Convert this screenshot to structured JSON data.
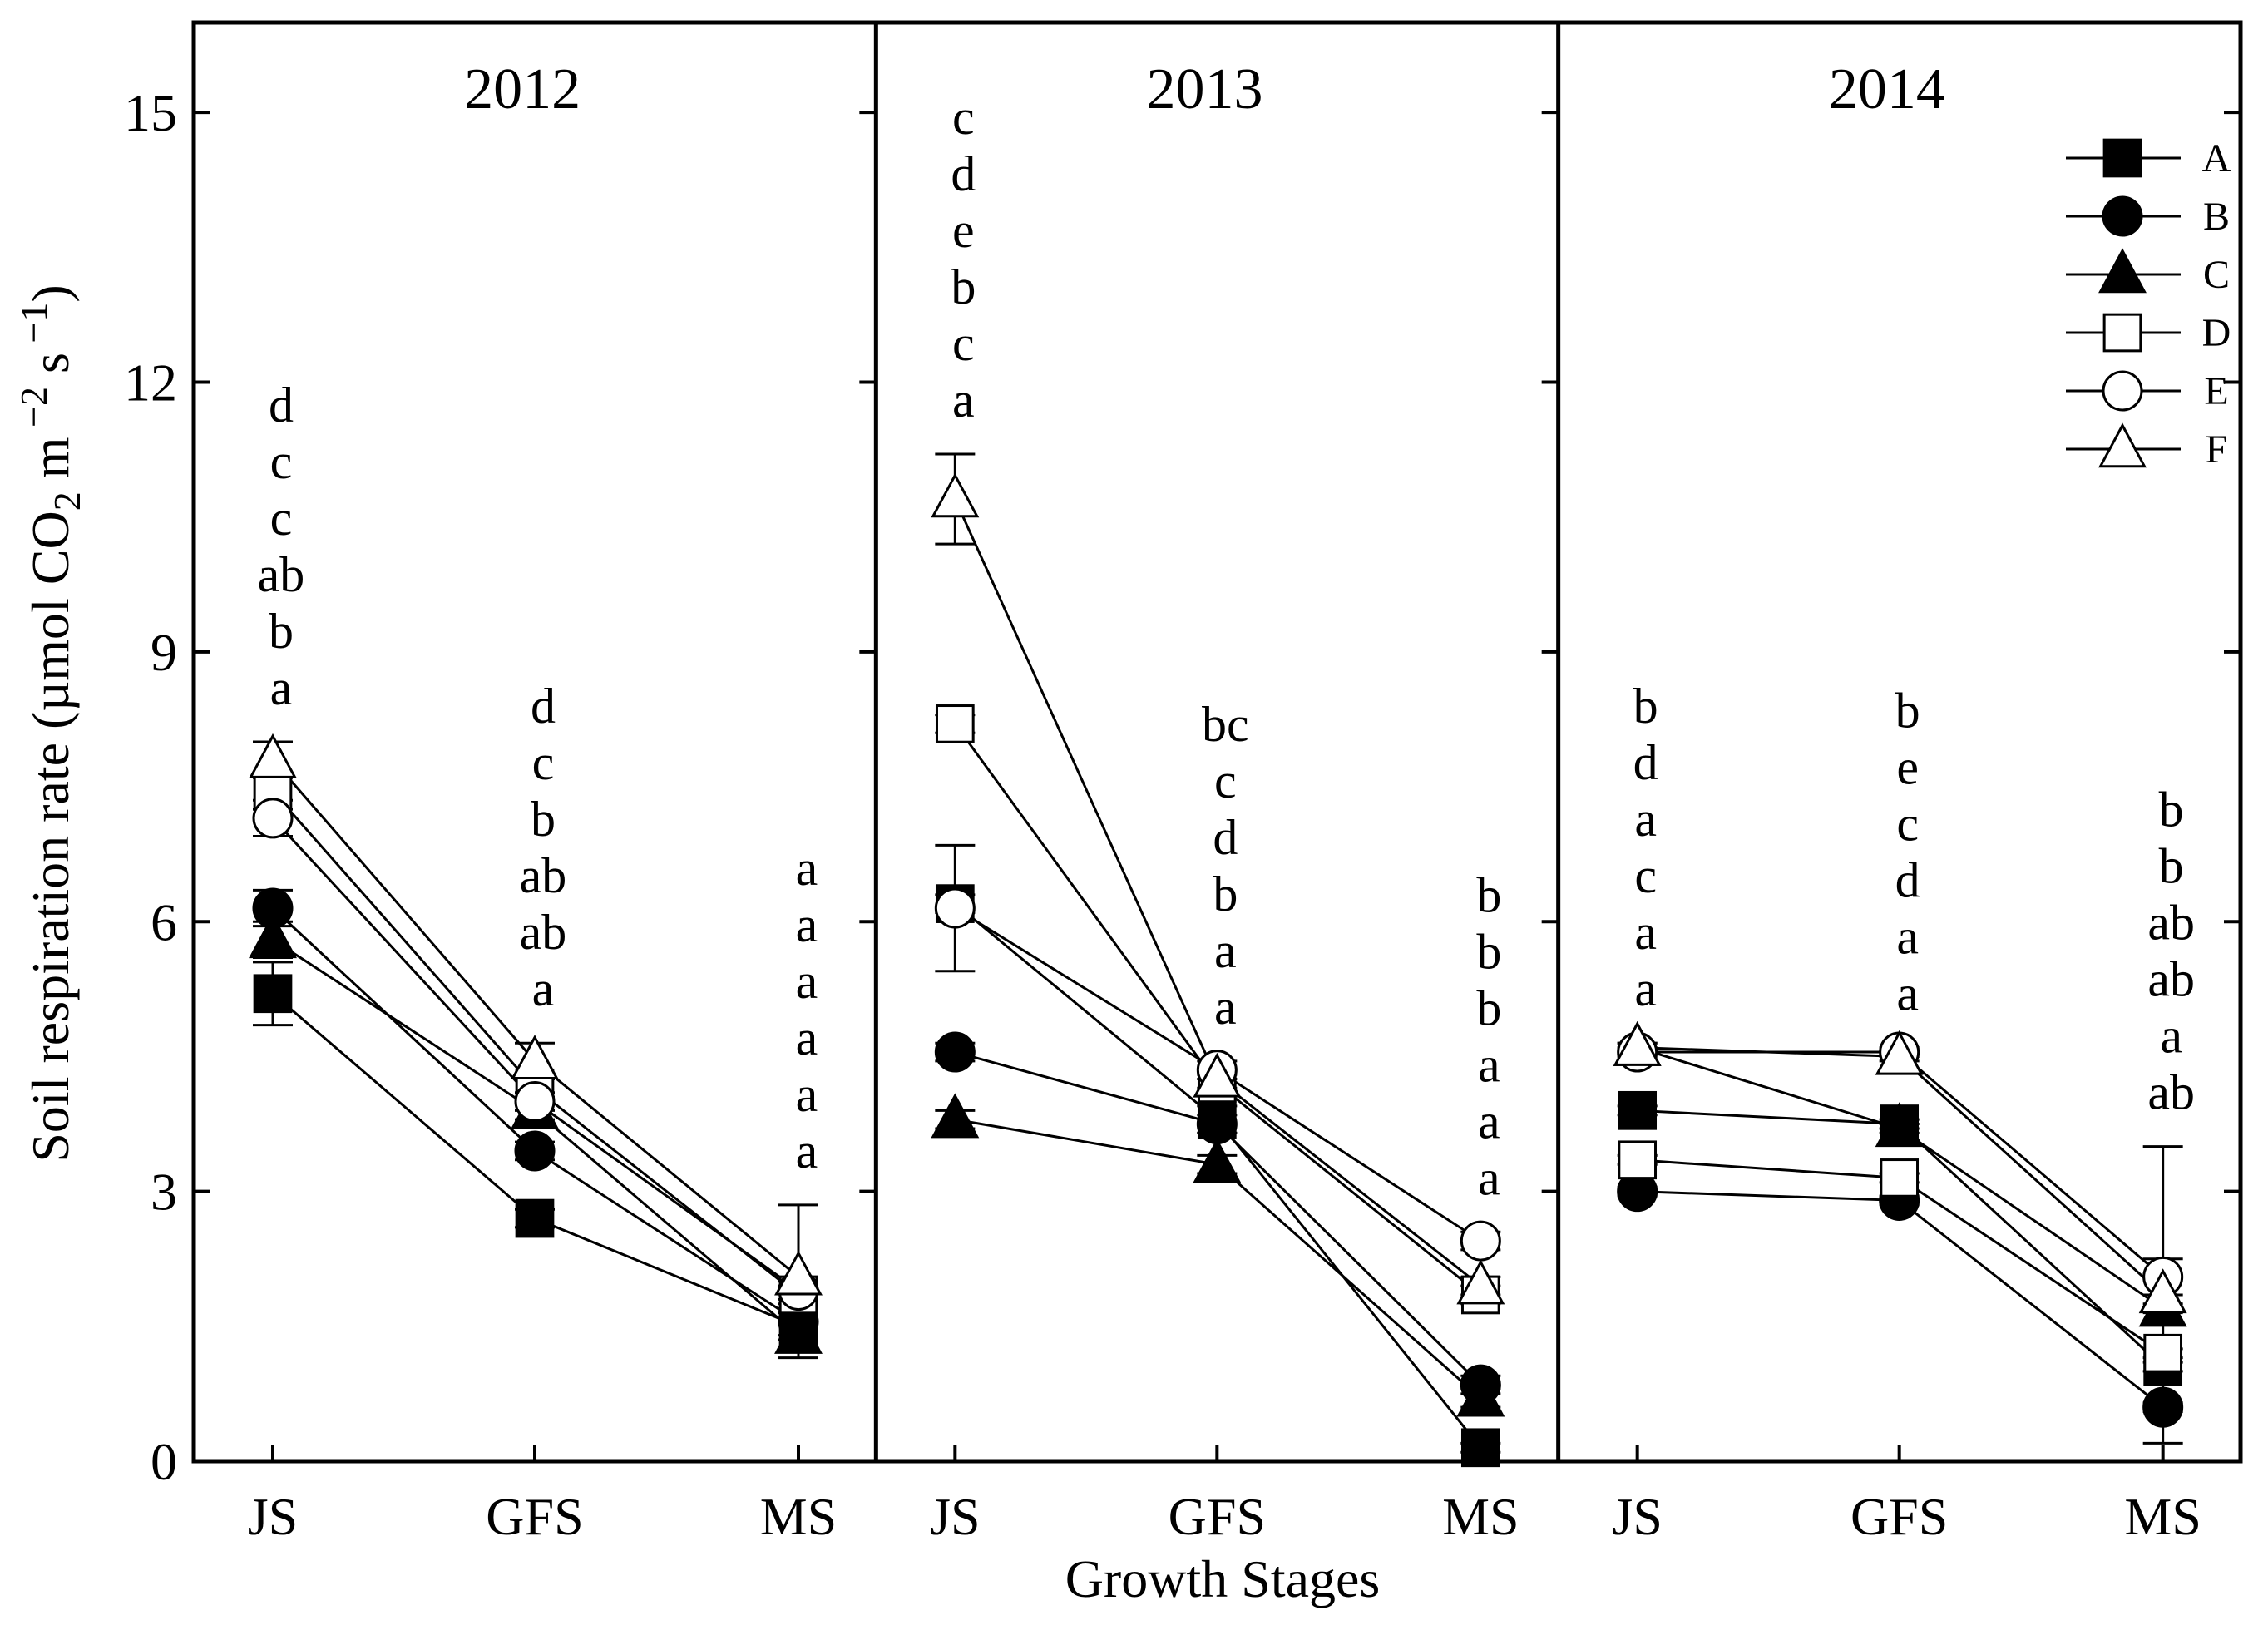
{
  "chart_data": {
    "type": "line",
    "ylabel_parts": {
      "main": "Soil respiration rate (µmol CO",
      "co2_sub": "2",
      "unit_m": " m",
      "exp1": " −2",
      "unit_s": " s",
      "exp2": " −1",
      "close": ")"
    },
    "xlabel": "Growth Stages",
    "ylim": [
      0,
      16
    ],
    "yticks": [
      0,
      3,
      6,
      9,
      12,
      15
    ],
    "categories": [
      "JS",
      "GFS",
      "MS"
    ],
    "legend": {
      "position": "top-right of third panel",
      "entries": [
        {
          "name": "A",
          "marker": "square",
          "filled": true
        },
        {
          "name": "B",
          "marker": "circle",
          "filled": true
        },
        {
          "name": "C",
          "marker": "triangle",
          "filled": true
        },
        {
          "name": "D",
          "marker": "square",
          "filled": false
        },
        {
          "name": "E",
          "marker": "circle",
          "filled": false
        },
        {
          "name": "F",
          "marker": "triangle",
          "filled": false
        }
      ]
    },
    "panels": [
      {
        "title": "2012",
        "series": [
          {
            "name": "A",
            "values": [
              5.2,
              2.7,
              1.5
            ],
            "errors": [
              0.35,
              0.1,
              0.15
            ]
          },
          {
            "name": "B",
            "values": [
              6.15,
              3.45,
              1.55
            ],
            "errors": [
              0.2,
              0.1,
              0.15
            ]
          },
          {
            "name": "C",
            "values": [
              5.8,
              3.9,
              1.4
            ],
            "errors": [
              0.2,
              0.1,
              0.25
            ]
          },
          {
            "name": "D",
            "values": [
              7.45,
              4.15,
              1.85
            ],
            "errors": [
              0.2,
              0.1,
              0.1
            ]
          },
          {
            "name": "E",
            "values": [
              7.15,
              4.0,
              1.9
            ],
            "errors": [
              0.2,
              0.1,
              0.1
            ]
          },
          {
            "name": "F",
            "values": [
              7.8,
              4.45,
              2.05
            ],
            "errors": [
              0.2,
              0.2,
              0.8
            ]
          }
        ],
        "letters": [
          [
            "d",
            "c",
            "c",
            "ab",
            "b",
            "a"
          ],
          [
            "d",
            "c",
            "b",
            "ab",
            "ab",
            "a"
          ],
          [
            "a",
            "a",
            "a",
            "a",
            "a",
            "a"
          ]
        ]
      },
      {
        "title": "2013",
        "series": [
          {
            "name": "A",
            "values": [
              6.2,
              3.8,
              0.15
            ],
            "errors": [
              0.1,
              0.15,
              0.05
            ]
          },
          {
            "name": "B",
            "values": [
              4.55,
              3.75,
              0.85
            ],
            "errors": [
              0.1,
              0.1,
              0.1
            ]
          },
          {
            "name": "C",
            "values": [
              3.8,
              3.3,
              0.7
            ],
            "errors": [
              0.1,
              0.1,
              0.1
            ]
          },
          {
            "name": "D",
            "values": [
              8.2,
              4.2,
              1.85
            ],
            "errors": [
              0.1,
              0.1,
              0.1
            ]
          },
          {
            "name": "E",
            "values": [
              6.15,
              4.35,
              2.45
            ],
            "errors": [
              0.7,
              0.1,
              0.1
            ]
          },
          {
            "name": "F",
            "values": [
              10.7,
              4.25,
              1.95
            ],
            "errors": [
              0.5,
              0.1,
              0.1
            ]
          }
        ],
        "letters": [
          [
            "c",
            "d",
            "e",
            "b",
            "c",
            "a"
          ],
          [
            "bc",
            "c",
            "d",
            "b",
            "a",
            "a"
          ],
          [
            "b",
            "b",
            "b",
            "a",
            "a",
            "a"
          ]
        ]
      },
      {
        "title": "2014",
        "series": [
          {
            "name": "A",
            "values": [
              3.9,
              3.75,
              1.05
            ],
            "errors": [
              0.05,
              0.05,
              0.05
            ]
          },
          {
            "name": "B",
            "values": [
              3.0,
              2.9,
              0.6
            ],
            "errors": [
              0.05,
              0.05,
              0.05
            ]
          },
          {
            "name": "C",
            "values": [
              4.6,
              3.7,
              1.7
            ],
            "errors": [
              0.05,
              0.05,
              0.05
            ]
          },
          {
            "name": "D",
            "values": [
              3.35,
              3.15,
              1.2
            ],
            "errors": [
              0.05,
              0.05,
              0.05
            ]
          },
          {
            "name": "E",
            "values": [
              4.55,
              4.55,
              2.05
            ],
            "errors": [
              0.05,
              0.05,
              0.2
            ]
          },
          {
            "name": "F",
            "values": [
              4.6,
              4.5,
              1.85
            ],
            "errors": [
              0.05,
              0.05,
              1.65
            ]
          }
        ],
        "letters": [
          [
            "b",
            "d",
            "a",
            "c",
            "a",
            "a"
          ],
          [
            "b",
            "e",
            "c",
            "d",
            "a",
            "a"
          ],
          [
            "b",
            "b",
            "ab",
            "ab",
            "a",
            "ab"
          ]
        ]
      }
    ]
  }
}
